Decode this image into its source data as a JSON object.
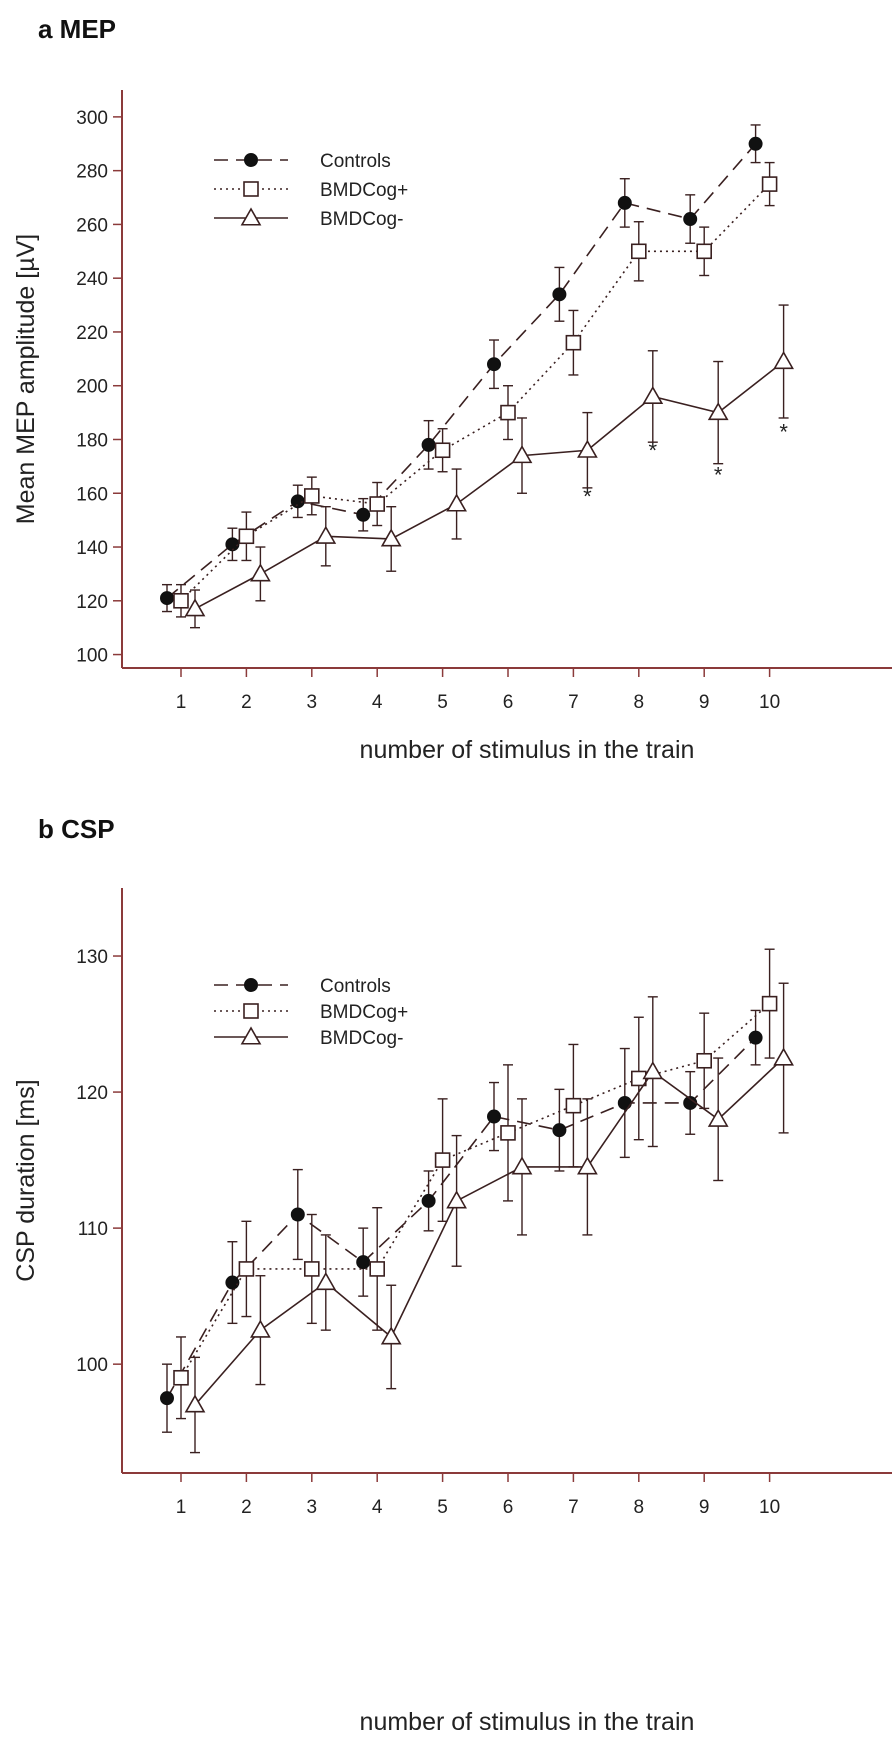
{
  "chart_data": [
    {
      "type": "line",
      "title": "a MEP",
      "xlabel": "number of stimulus in the train",
      "ylabel": "Mean MEP amplitude [µV]",
      "x": [
        1,
        2,
        3,
        4,
        5,
        6,
        7,
        8,
        9,
        10
      ],
      "ylim": [
        95,
        310
      ],
      "yticks": [
        100,
        120,
        140,
        160,
        180,
        200,
        220,
        240,
        260,
        280,
        300
      ],
      "legend_position": "top-left",
      "axis_color": "#8b3a3a",
      "line_color": "#3a2020",
      "series": [
        {
          "name": "Controls",
          "marker": "filled-circle",
          "line": "dashed",
          "values": [
            121,
            141,
            157,
            152,
            178,
            208,
            234,
            268,
            262,
            290
          ],
          "errors": [
            5,
            6,
            6,
            6,
            9,
            9,
            10,
            9,
            9,
            7
          ]
        },
        {
          "name": "BMDCog+",
          "marker": "open-square",
          "line": "dotted",
          "values": [
            120,
            144,
            159,
            156,
            176,
            190,
            216,
            250,
            250,
            275
          ],
          "errors": [
            6,
            9,
            7,
            8,
            8,
            10,
            12,
            11,
            9,
            8
          ]
        },
        {
          "name": "BMDCog-",
          "marker": "open-triangle",
          "line": "solid",
          "values": [
            117,
            130,
            144,
            143,
            156,
            174,
            176,
            196,
            190,
            209
          ],
          "errors": [
            7,
            10,
            11,
            12,
            13,
            14,
            14,
            17,
            19,
            21
          ]
        }
      ],
      "annotations": [
        {
          "text": "*",
          "x": 7,
          "y": 159
        },
        {
          "text": "*",
          "x": 8,
          "y": 176
        },
        {
          "text": "*",
          "x": 9,
          "y": 167
        },
        {
          "text": "*",
          "x": 10,
          "y": 183
        }
      ]
    },
    {
      "type": "line",
      "title": "b CSP",
      "xlabel": "number of stimulus in the train",
      "ylabel": "CSP duration [ms]",
      "x": [
        1,
        2,
        3,
        4,
        5,
        6,
        7,
        8,
        9,
        10
      ],
      "ylim": [
        92,
        135
      ],
      "yticks": [
        100,
        110,
        120,
        130
      ],
      "legend_position": "top-left",
      "axis_color": "#8b3a3a",
      "line_color": "#3a2020",
      "series": [
        {
          "name": "Controls",
          "marker": "filled-circle",
          "line": "dashed",
          "values": [
            97.5,
            106,
            111,
            107.5,
            112,
            118.2,
            117.2,
            119.2,
            119.2,
            124
          ],
          "errors": [
            2.5,
            3,
            3.3,
            2.5,
            2.2,
            2.5,
            3,
            4,
            2.3,
            2
          ]
        },
        {
          "name": "BMDCog+",
          "marker": "open-square",
          "line": "dotted",
          "values": [
            99,
            107,
            107,
            107,
            115,
            117,
            119,
            121,
            122.3,
            126.5
          ],
          "errors": [
            3,
            3.5,
            4,
            4.5,
            4.5,
            5,
            4.5,
            4.5,
            3.5,
            4
          ]
        },
        {
          "name": "BMDCog-",
          "marker": "open-triangle",
          "line": "solid",
          "values": [
            97,
            102.5,
            106,
            102,
            112,
            114.5,
            114.5,
            121.5,
            118,
            122.5
          ],
          "errors": [
            3.5,
            4,
            3.5,
            3.8,
            4.8,
            5,
            5,
            5.5,
            4.5,
            5.5
          ]
        }
      ],
      "annotations": []
    }
  ]
}
